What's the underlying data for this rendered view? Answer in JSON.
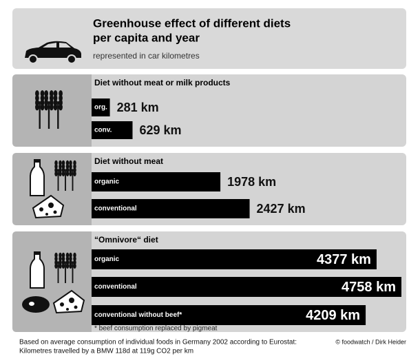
{
  "chart_data": {
    "type": "bar",
    "title": [
      "Greenhouse effect of different diets",
      "per capita and year"
    ],
    "subtitle": "represented in car kilometres",
    "color": "#000000",
    "groups": [
      {
        "name": "Diet without meat or milk products",
        "categories": [
          "org.",
          "conv."
        ],
        "values": [
          281,
          629
        ],
        "value_labels": [
          "281 km",
          "629 km"
        ],
        "value_label_inside": false
      },
      {
        "name": "Diet without meat",
        "categories": [
          "organic",
          "conventional"
        ],
        "values": [
          1978,
          2427
        ],
        "value_labels": [
          "1978 km",
          "2427 km"
        ],
        "value_label_inside": false
      },
      {
        "name": "“Omnivore“ diet",
        "categories": [
          "organic",
          "conventional",
          "conventional without beef*"
        ],
        "values": [
          4377,
          4758,
          4209
        ],
        "value_labels": [
          "4377 km",
          "4758 km",
          "4209 km"
        ],
        "value_label_inside": true,
        "note": "* beef consumption replaced by pigmeat"
      }
    ],
    "footer": [
      "Based on average consumption of individual foods in Germany 2002 according to Eurostat:",
      "Kilometres travelled by a BMW 118d at 119g CO2 per km"
    ],
    "credit": "© foodwatch / Dirk Heider"
  }
}
